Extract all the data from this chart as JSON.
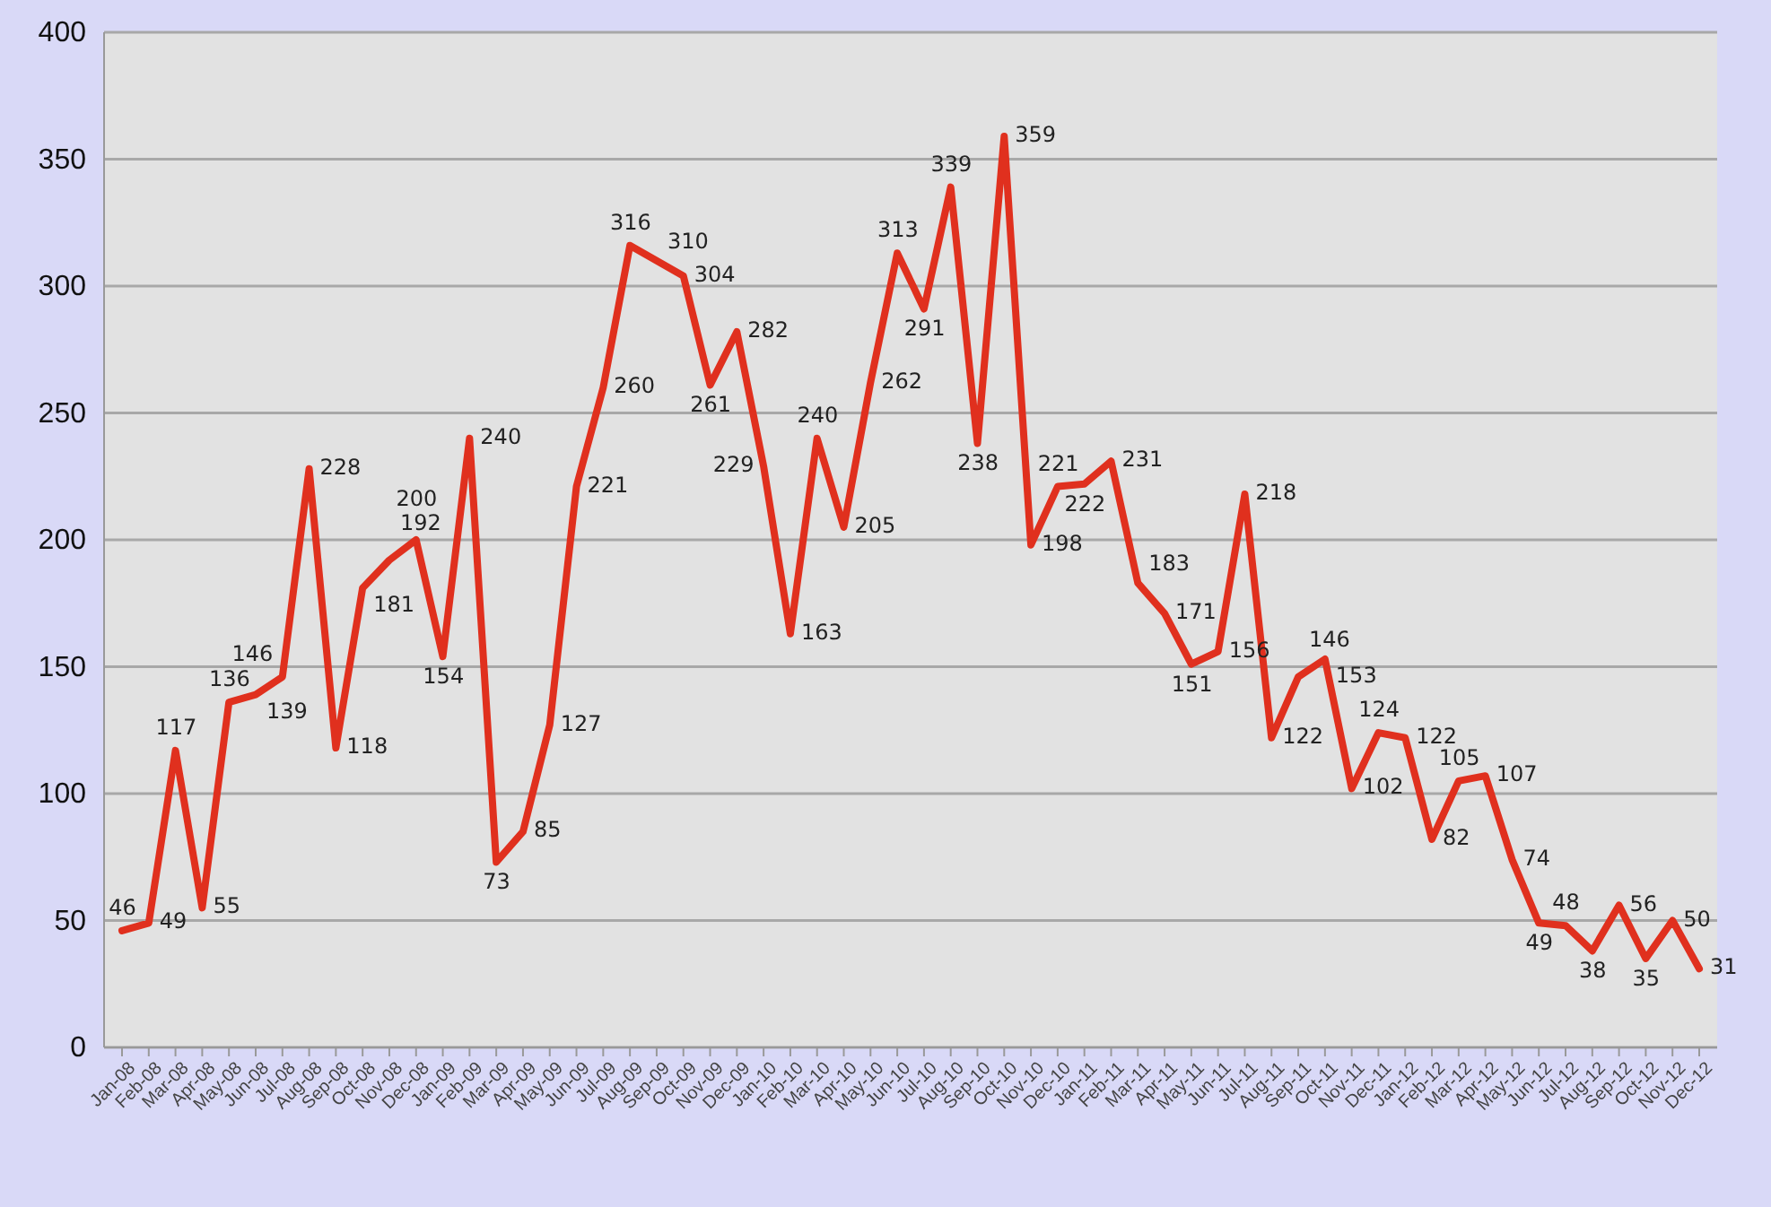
{
  "chart_data": {
    "type": "line",
    "categories": [
      "Jan-08",
      "Feb-08",
      "Mar-08",
      "Apr-08",
      "May-08",
      "Jun-08",
      "Jul-08",
      "Aug-08",
      "Sep-08",
      "Oct-08",
      "Nov-08",
      "Dec-08",
      "Jan-09",
      "Feb-09",
      "Mar-09",
      "Apr-09",
      "May-09",
      "Jun-09",
      "Jul-09",
      "Aug-09",
      "Sep-09",
      "Oct-09",
      "Nov-09",
      "Dec-09",
      "Jan-10",
      "Feb-10",
      "Mar-10",
      "Apr-10",
      "May-10",
      "Jun-10",
      "Jul-10",
      "Aug-10",
      "Sep-10",
      "Oct-10",
      "Nov-10",
      "Dec-10",
      "Jan-11",
      "Feb-11",
      "Mar-11",
      "Apr-11",
      "May-11",
      "Jun-11",
      "Jul-11",
      "Aug-11",
      "Sep-11",
      "Oct-11",
      "Nov-11",
      "Dec-11",
      "Jan-12",
      "Feb-12",
      "Mar-12",
      "Apr-12",
      "May-12",
      "Jun-12",
      "Jul-12",
      "Aug-12",
      "Sep-12",
      "Oct-12",
      "Nov-12",
      "Dec-12"
    ],
    "series": [
      {
        "color": "#e0301e",
        "values": [
          46,
          49,
          117,
          55,
          136,
          139,
          146,
          228,
          118,
          181,
          192,
          200,
          154,
          240,
          73,
          85,
          127,
          221,
          260,
          316,
          310,
          304,
          261,
          282,
          229,
          163,
          240,
          205,
          262,
          313,
          291,
          339,
          238,
          359,
          198,
          221,
          222,
          231,
          183,
          171,
          151,
          156,
          218,
          122,
          146,
          153,
          102,
          124,
          122,
          82,
          105,
          107,
          74,
          49,
          48,
          38,
          56,
          35,
          50,
          31
        ]
      }
    ],
    "ylim": [
      0,
      400
    ],
    "yticks": [
      0,
      50,
      100,
      150,
      200,
      250,
      300,
      350,
      400
    ],
    "grid": "y",
    "data_labels": true,
    "marker": "none",
    "line_style": "solid"
  }
}
